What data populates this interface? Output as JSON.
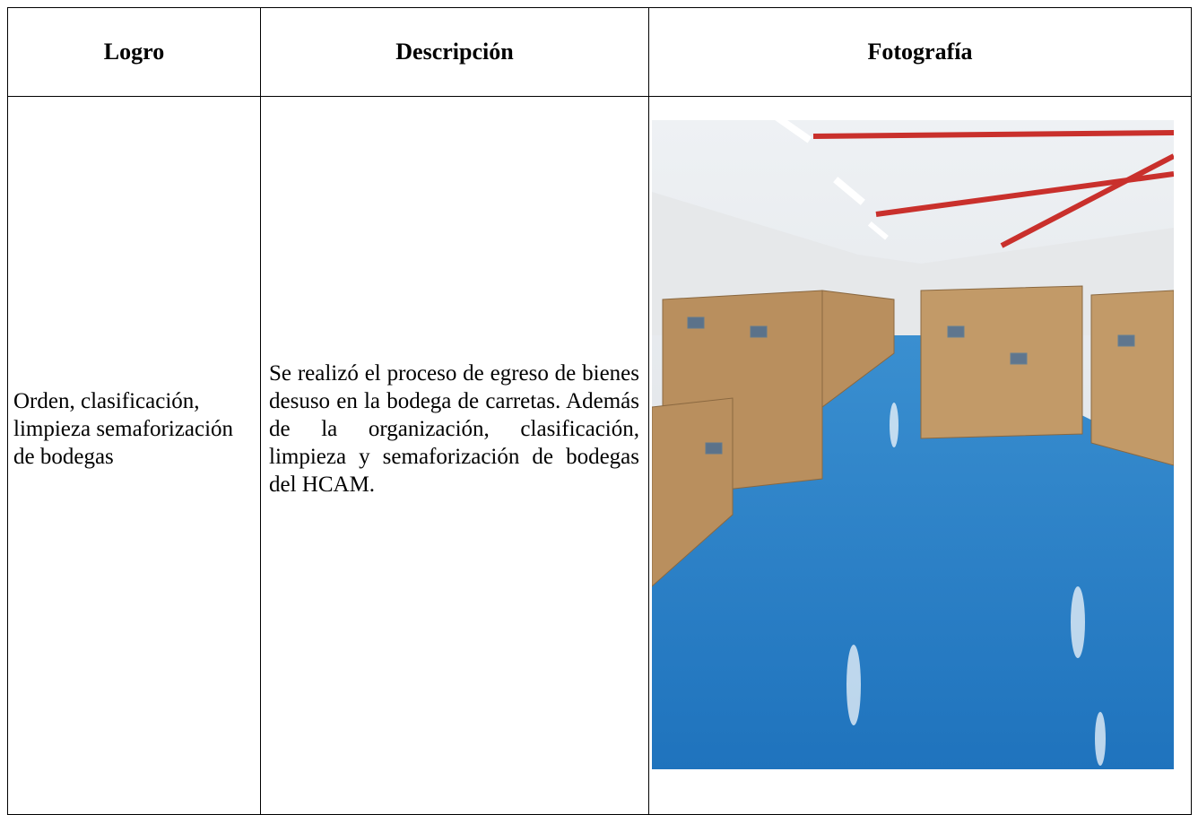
{
  "table": {
    "header": [
      "Logro",
      "Descripción",
      "Fotografía"
    ],
    "rows": [
      [
        "Orden, clasificación, limpieza semaforización de bodegas",
        "Se realizó el proceso de egreso de bienes desuso en la bodega de carretas. Además de la organización, clasificación, limpieza y semaforización de bodegas del HCAM."
      ]
    ]
  }
}
